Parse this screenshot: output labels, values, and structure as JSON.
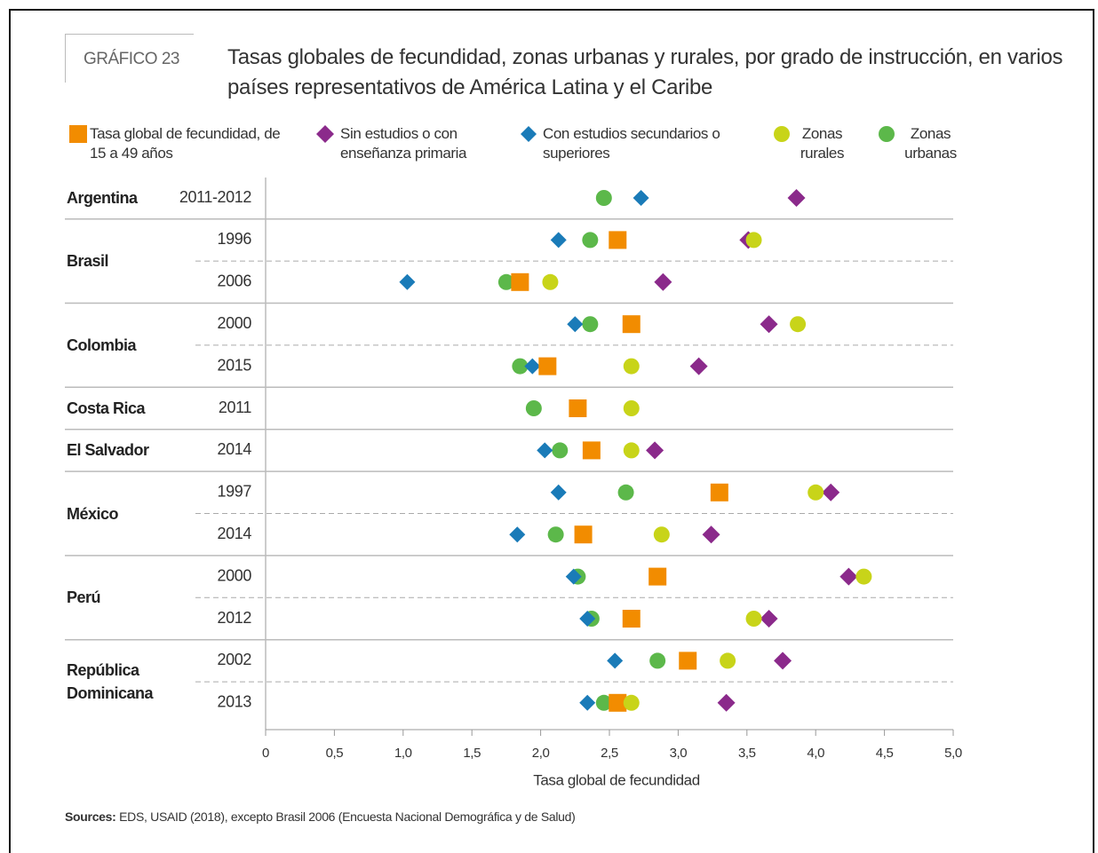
{
  "chart_data": {
    "type": "dot",
    "badge": "GRÁFICO 23",
    "title": "Tasas globales de fecundidad, zonas urbanas y rurales, por grado de instrucción, en varios países representativos de América Latina y el Caribe",
    "groups": [
      {
        "label": "Argentina",
        "years": [
          "2011-2012"
        ]
      },
      {
        "label": "Brasil",
        "years": [
          "1996",
          "2006"
        ]
      },
      {
        "label": "Colombia",
        "years": [
          "2000",
          "2015"
        ]
      },
      {
        "label": "Costa Rica",
        "years": [
          "2011"
        ]
      },
      {
        "label": "El Salvador",
        "years": [
          "2014"
        ]
      },
      {
        "label": "México",
        "years": [
          "1997",
          "2014"
        ]
      },
      {
        "label": "Perú",
        "years": [
          "2000",
          "2012"
        ]
      },
      {
        "label": "República Dominicana",
        "years": [
          "2002",
          "2013"
        ]
      }
    ],
    "series": [
      {
        "name": "Zonas urbanas",
        "color": "#5cb84a",
        "marker": "circle",
        "values": [
          2.46,
          2.36,
          1.75,
          2.36,
          1.85,
          1.95,
          2.14,
          2.62,
          2.11,
          2.27,
          2.37,
          2.85,
          2.46
        ]
      },
      {
        "name": "Con estudios secundarios o superiores",
        "color": "#1a7bb8",
        "marker": "diamond",
        "values": [
          2.73,
          2.13,
          1.03,
          2.25,
          1.94,
          null,
          2.03,
          2.13,
          1.83,
          2.24,
          2.34,
          2.54,
          2.34
        ]
      },
      {
        "name": "Tasa global de fecundidad, de 15 a 49 años",
        "color": "#f28c00",
        "marker": "square",
        "values": [
          null,
          2.56,
          1.85,
          2.66,
          2.05,
          2.27,
          2.37,
          3.3,
          2.31,
          2.85,
          2.66,
          3.07,
          2.56
        ]
      },
      {
        "name": "Sin estudios o con enseñanza primaria",
        "color": "#8b2a8b",
        "marker": "diamond",
        "values": [
          3.86,
          3.51,
          2.89,
          3.66,
          3.15,
          null,
          2.83,
          4.11,
          3.24,
          4.24,
          3.66,
          3.76,
          3.35
        ]
      },
      {
        "name": "Zonas rurales",
        "color": "#c8d419",
        "marker": "circle",
        "values": [
          null,
          3.55,
          2.07,
          3.87,
          2.66,
          2.66,
          2.66,
          4.0,
          2.88,
          4.35,
          3.55,
          3.36,
          2.66
        ]
      }
    ],
    "legend_order": [
      2,
      3,
      1,
      4,
      0
    ],
    "xlim": [
      0,
      5
    ],
    "xticks": [
      0,
      {
        "value": 0.5,
        "label": "0,5"
      },
      {
        "value": 1,
        "label": "1,0"
      },
      {
        "value": 1.5,
        "label": "1,5"
      },
      {
        "value": 2,
        "label": "2,0"
      },
      {
        "value": 2.5,
        "label": "2,5"
      },
      {
        "value": 3,
        "label": "3,0"
      },
      {
        "value": 3.5,
        "label": "3,5"
      },
      {
        "value": 4,
        "label": "4,0"
      },
      {
        "value": 4.5,
        "label": "4,5"
      },
      {
        "value": 5,
        "label": "5,0"
      }
    ],
    "xlabel": "Tasa global de fecundidad",
    "source_label": "Sources:",
    "source": "EDS, USAID (2018), excepto Brasil 2006 (Encuesta Nacional Demográfica y de Salud)"
  }
}
